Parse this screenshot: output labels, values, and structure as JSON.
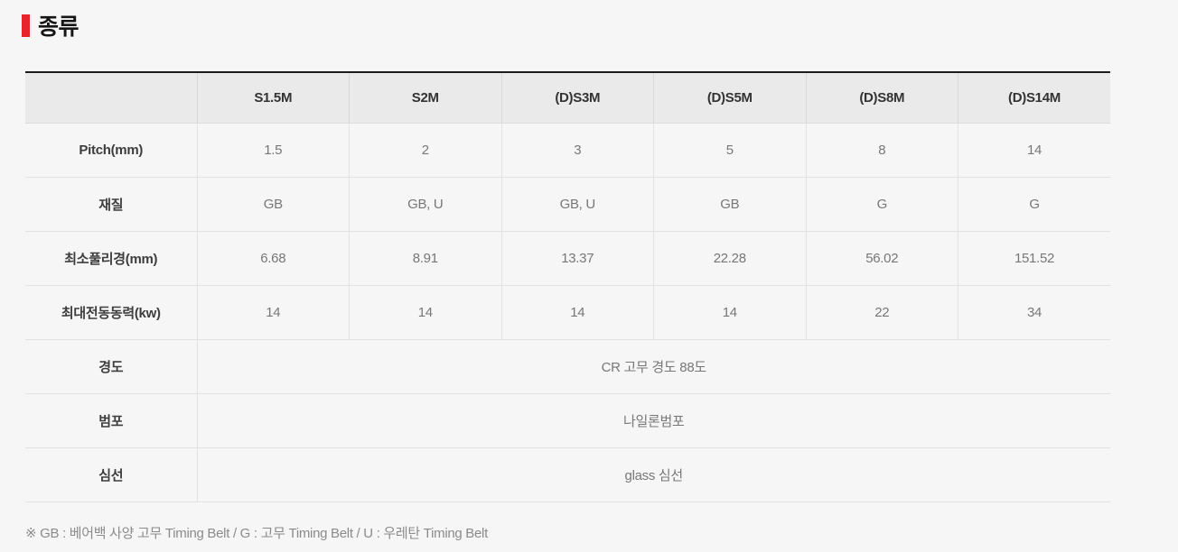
{
  "page": {
    "section_title": "종류"
  },
  "table": {
    "columns": [
      "",
      "S1.5M",
      "S2M",
      "(D)S3M",
      "(D)S5M",
      "(D)S8M",
      "(D)S14M"
    ],
    "rows": [
      {
        "label": "Pitch(mm)",
        "values": [
          "1.5",
          "2",
          "3",
          "5",
          "8",
          "14"
        ]
      },
      {
        "label": "재질",
        "values": [
          "GB",
          "GB, U",
          "GB, U",
          "GB",
          "G",
          "G"
        ]
      },
      {
        "label": "최소풀리경(mm)",
        "values": [
          "6.68",
          "8.91",
          "13.37",
          "22.28",
          "56.02",
          "151.52"
        ]
      },
      {
        "label": "최대전동동력(kw)",
        "values": [
          "14",
          "14",
          "14",
          "14",
          "22",
          "34"
        ]
      }
    ],
    "merged_rows": [
      {
        "label": "경도",
        "value": "CR 고무 경도 88도"
      },
      {
        "label": "범포",
        "value": "나일론범포"
      },
      {
        "label": "심선",
        "value": "glass 심선"
      }
    ]
  },
  "footnote": "※ GB : 베어백 사양 고무 Timing Belt / G : 고무 Timing Belt / U : 우레탄 Timing Belt",
  "colors": {
    "accent_red": "#e7242b",
    "header_bg": "#eaeaea",
    "table_top_border": "#1c1c1c",
    "grid_border": "#e2e2e2",
    "header_text": "#333333",
    "label_text": "#3d3d3d",
    "value_text": "#777777",
    "footnote_text": "#8b8b8b",
    "page_bg": "#f6f6f7"
  }
}
